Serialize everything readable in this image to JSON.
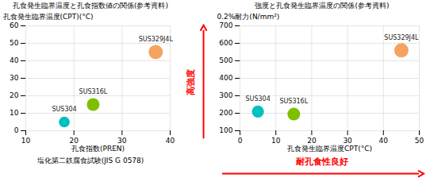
{
  "chart_data": [
    {
      "type": "scatter",
      "title": "孔食発生臨界温度と孔食指数値の関係(参考資料)",
      "xlabel": "孔食指数(PREN)",
      "ylabel": "孔食発生臨界温度(CPT)(°C)",
      "x": [
        18,
        24,
        37
      ],
      "values": [
        5,
        15,
        45
      ],
      "labels": [
        "SUS304",
        "SUS316L",
        "SUS329J4L"
      ],
      "colors": [
        "#00BFBF",
        "#7FBF00",
        "#F4A460"
      ],
      "sizes": [
        400,
        550,
        700
      ],
      "xlim": [
        10,
        40
      ],
      "ylim": [
        0,
        60
      ],
      "xticks": [
        10,
        20,
        30,
        40
      ],
      "yticks": [
        0,
        10,
        20,
        30,
        40,
        50,
        60
      ],
      "grid": true,
      "caption": "塩化第二鉄腐食試験(JIS G 0578)"
    },
    {
      "type": "scatter",
      "title": "強度と孔食発生臨界温度の関係(参考資料)",
      "xlabel": "孔食発生臨界温度CPT(°C)",
      "ylabel": "0.2%耐力(N/mm²)",
      "x": [
        5,
        15,
        45
      ],
      "values": [
        210,
        195,
        560
      ],
      "labels": [
        "SUS304",
        "SUS316L",
        "SUS329J4L"
      ],
      "colors": [
        "#00BFBF",
        "#7FBF00",
        "#F4A460"
      ],
      "sizes": [
        500,
        550,
        700
      ],
      "xlim": [
        0,
        50
      ],
      "ylim": [
        100,
        700
      ],
      "xticks": [
        0,
        10,
        20,
        30,
        40,
        50
      ],
      "yticks": [
        100,
        200,
        300,
        400,
        500,
        600,
        700
      ],
      "grid": true,
      "annotations": [
        {
          "text": "耐孔食性良好",
          "axis": "x",
          "color": "red"
        },
        {
          "text": "高強度",
          "axis": "y",
          "color": "red"
        }
      ]
    }
  ]
}
